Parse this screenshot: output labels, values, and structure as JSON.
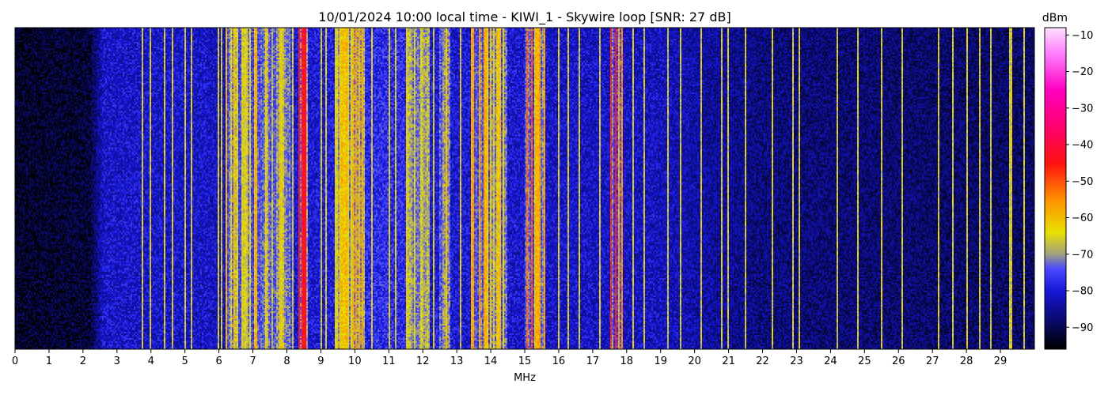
{
  "chart_data": {
    "type": "heatmap",
    "title": "10/01/2024 10:00 local time - KIWI_1 - Skywire loop [SNR: 27 dB]",
    "xlabel": "MHz",
    "ylabel": "",
    "xlim": [
      0,
      30
    ],
    "x_ticks": [
      0,
      1,
      2,
      3,
      4,
      5,
      6,
      7,
      8,
      9,
      10,
      11,
      12,
      13,
      14,
      15,
      16,
      17,
      18,
      19,
      20,
      21,
      22,
      23,
      24,
      25,
      26,
      27,
      28,
      29
    ],
    "colorbar": {
      "label": "dBm",
      "range": [
        -96,
        -8
      ],
      "ticks": [
        -10,
        -20,
        -30,
        -40,
        -50,
        -60,
        -70,
        -80,
        -90
      ],
      "colormap": [
        {
          "value": -96,
          "color": "#000000"
        },
        {
          "value": -88,
          "color": "#0a0a6e"
        },
        {
          "value": -80,
          "color": "#1616d8"
        },
        {
          "value": -74,
          "color": "#4a4aff"
        },
        {
          "value": -70,
          "color": "#a0a080"
        },
        {
          "value": -64,
          "color": "#e8e000"
        },
        {
          "value": -55,
          "color": "#ff9000"
        },
        {
          "value": -45,
          "color": "#ff1010"
        },
        {
          "value": -35,
          "color": "#ff0070"
        },
        {
          "value": -25,
          "color": "#ff00c0"
        },
        {
          "value": -15,
          "color": "#ff80ff"
        },
        {
          "value": -8,
          "color": "#ffe0ff"
        }
      ]
    },
    "noise_floor": [
      {
        "mhz": 0.0,
        "dbm": -93
      },
      {
        "mhz": 2.2,
        "dbm": -92
      },
      {
        "mhz": 2.6,
        "dbm": -81
      },
      {
        "mhz": 5.5,
        "dbm": -81
      },
      {
        "mhz": 6.0,
        "dbm": -82
      },
      {
        "mhz": 9.0,
        "dbm": -80
      },
      {
        "mhz": 11.0,
        "dbm": -77
      },
      {
        "mhz": 12.5,
        "dbm": -80
      },
      {
        "mhz": 19.0,
        "dbm": -82
      },
      {
        "mhz": 22.0,
        "dbm": -87
      },
      {
        "mhz": 30.0,
        "dbm": -89
      }
    ],
    "signal_bands": [
      {
        "from": 6.2,
        "to": 6.9,
        "dbm": -64
      },
      {
        "from": 6.9,
        "to": 7.3,
        "dbm": -62
      },
      {
        "from": 7.3,
        "to": 8.2,
        "dbm": -67
      },
      {
        "from": 8.35,
        "to": 8.6,
        "dbm": -46
      },
      {
        "from": 9.4,
        "to": 10.0,
        "dbm": -64
      },
      {
        "from": 10.0,
        "to": 10.3,
        "dbm": -56
      },
      {
        "from": 11.5,
        "to": 12.2,
        "dbm": -65
      },
      {
        "from": 12.5,
        "to": 12.8,
        "dbm": -63
      },
      {
        "from": 13.4,
        "to": 13.9,
        "dbm": -60
      },
      {
        "from": 13.9,
        "to": 14.5,
        "dbm": -64
      },
      {
        "from": 15.0,
        "to": 15.25,
        "dbm": -48
      },
      {
        "from": 15.25,
        "to": 15.6,
        "dbm": -58
      },
      {
        "from": 17.5,
        "to": 17.7,
        "dbm": -45
      },
      {
        "from": 17.7,
        "to": 17.9,
        "dbm": -58
      }
    ],
    "carrier_lines_mhz": [
      3.75,
      4.0,
      4.4,
      4.65,
      5.0,
      5.2,
      6.0,
      6.1,
      9.0,
      9.15,
      10.5,
      11.0,
      11.2,
      12.0,
      12.3,
      13.1,
      16.0,
      16.3,
      16.6,
      17.2,
      18.2,
      18.5,
      19.2,
      19.6,
      20.2,
      20.8,
      21.0,
      21.5,
      22.3,
      22.9,
      23.1,
      24.2,
      24.8,
      25.5,
      26.1,
      27.2,
      27.6,
      28.0,
      28.4,
      28.7,
      29.3,
      29.7
    ]
  }
}
